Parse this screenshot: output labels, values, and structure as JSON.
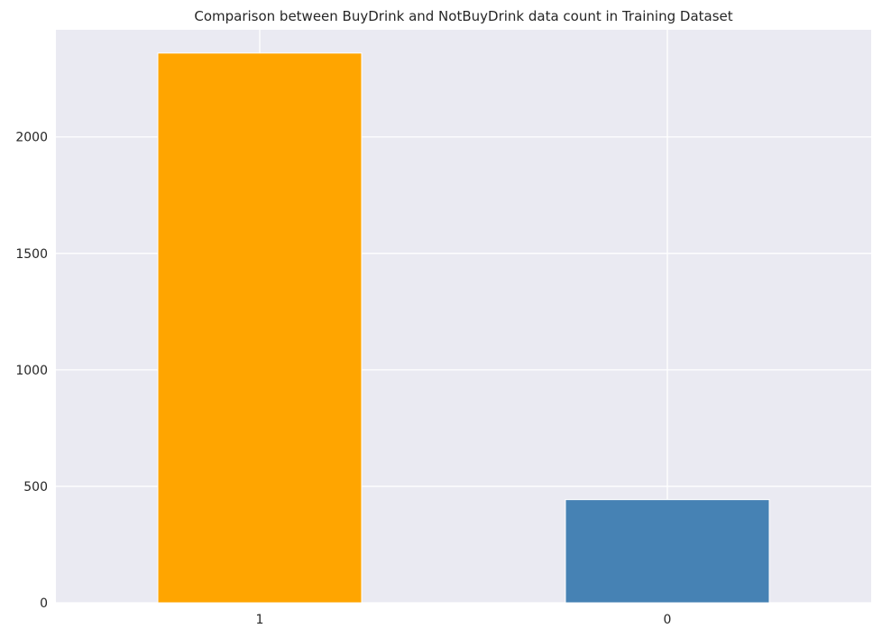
{
  "chart_data": {
    "type": "bar",
    "title": "Comparison between BuyDrink and NotBuyDrink data count in Training Dataset",
    "xlabel": "",
    "ylabel": "",
    "categories": [
      "1",
      "0"
    ],
    "values": [
      2360,
      443
    ],
    "bar_colors": [
      "#FFA500",
      "#4682B4"
    ],
    "ylim": [
      0,
      2460
    ],
    "yticks": [
      0,
      500,
      1000,
      1500,
      2000
    ],
    "grid": true,
    "background_color": "#EAEAF2",
    "grid_color": "#FFFFFF",
    "legend": "none"
  }
}
